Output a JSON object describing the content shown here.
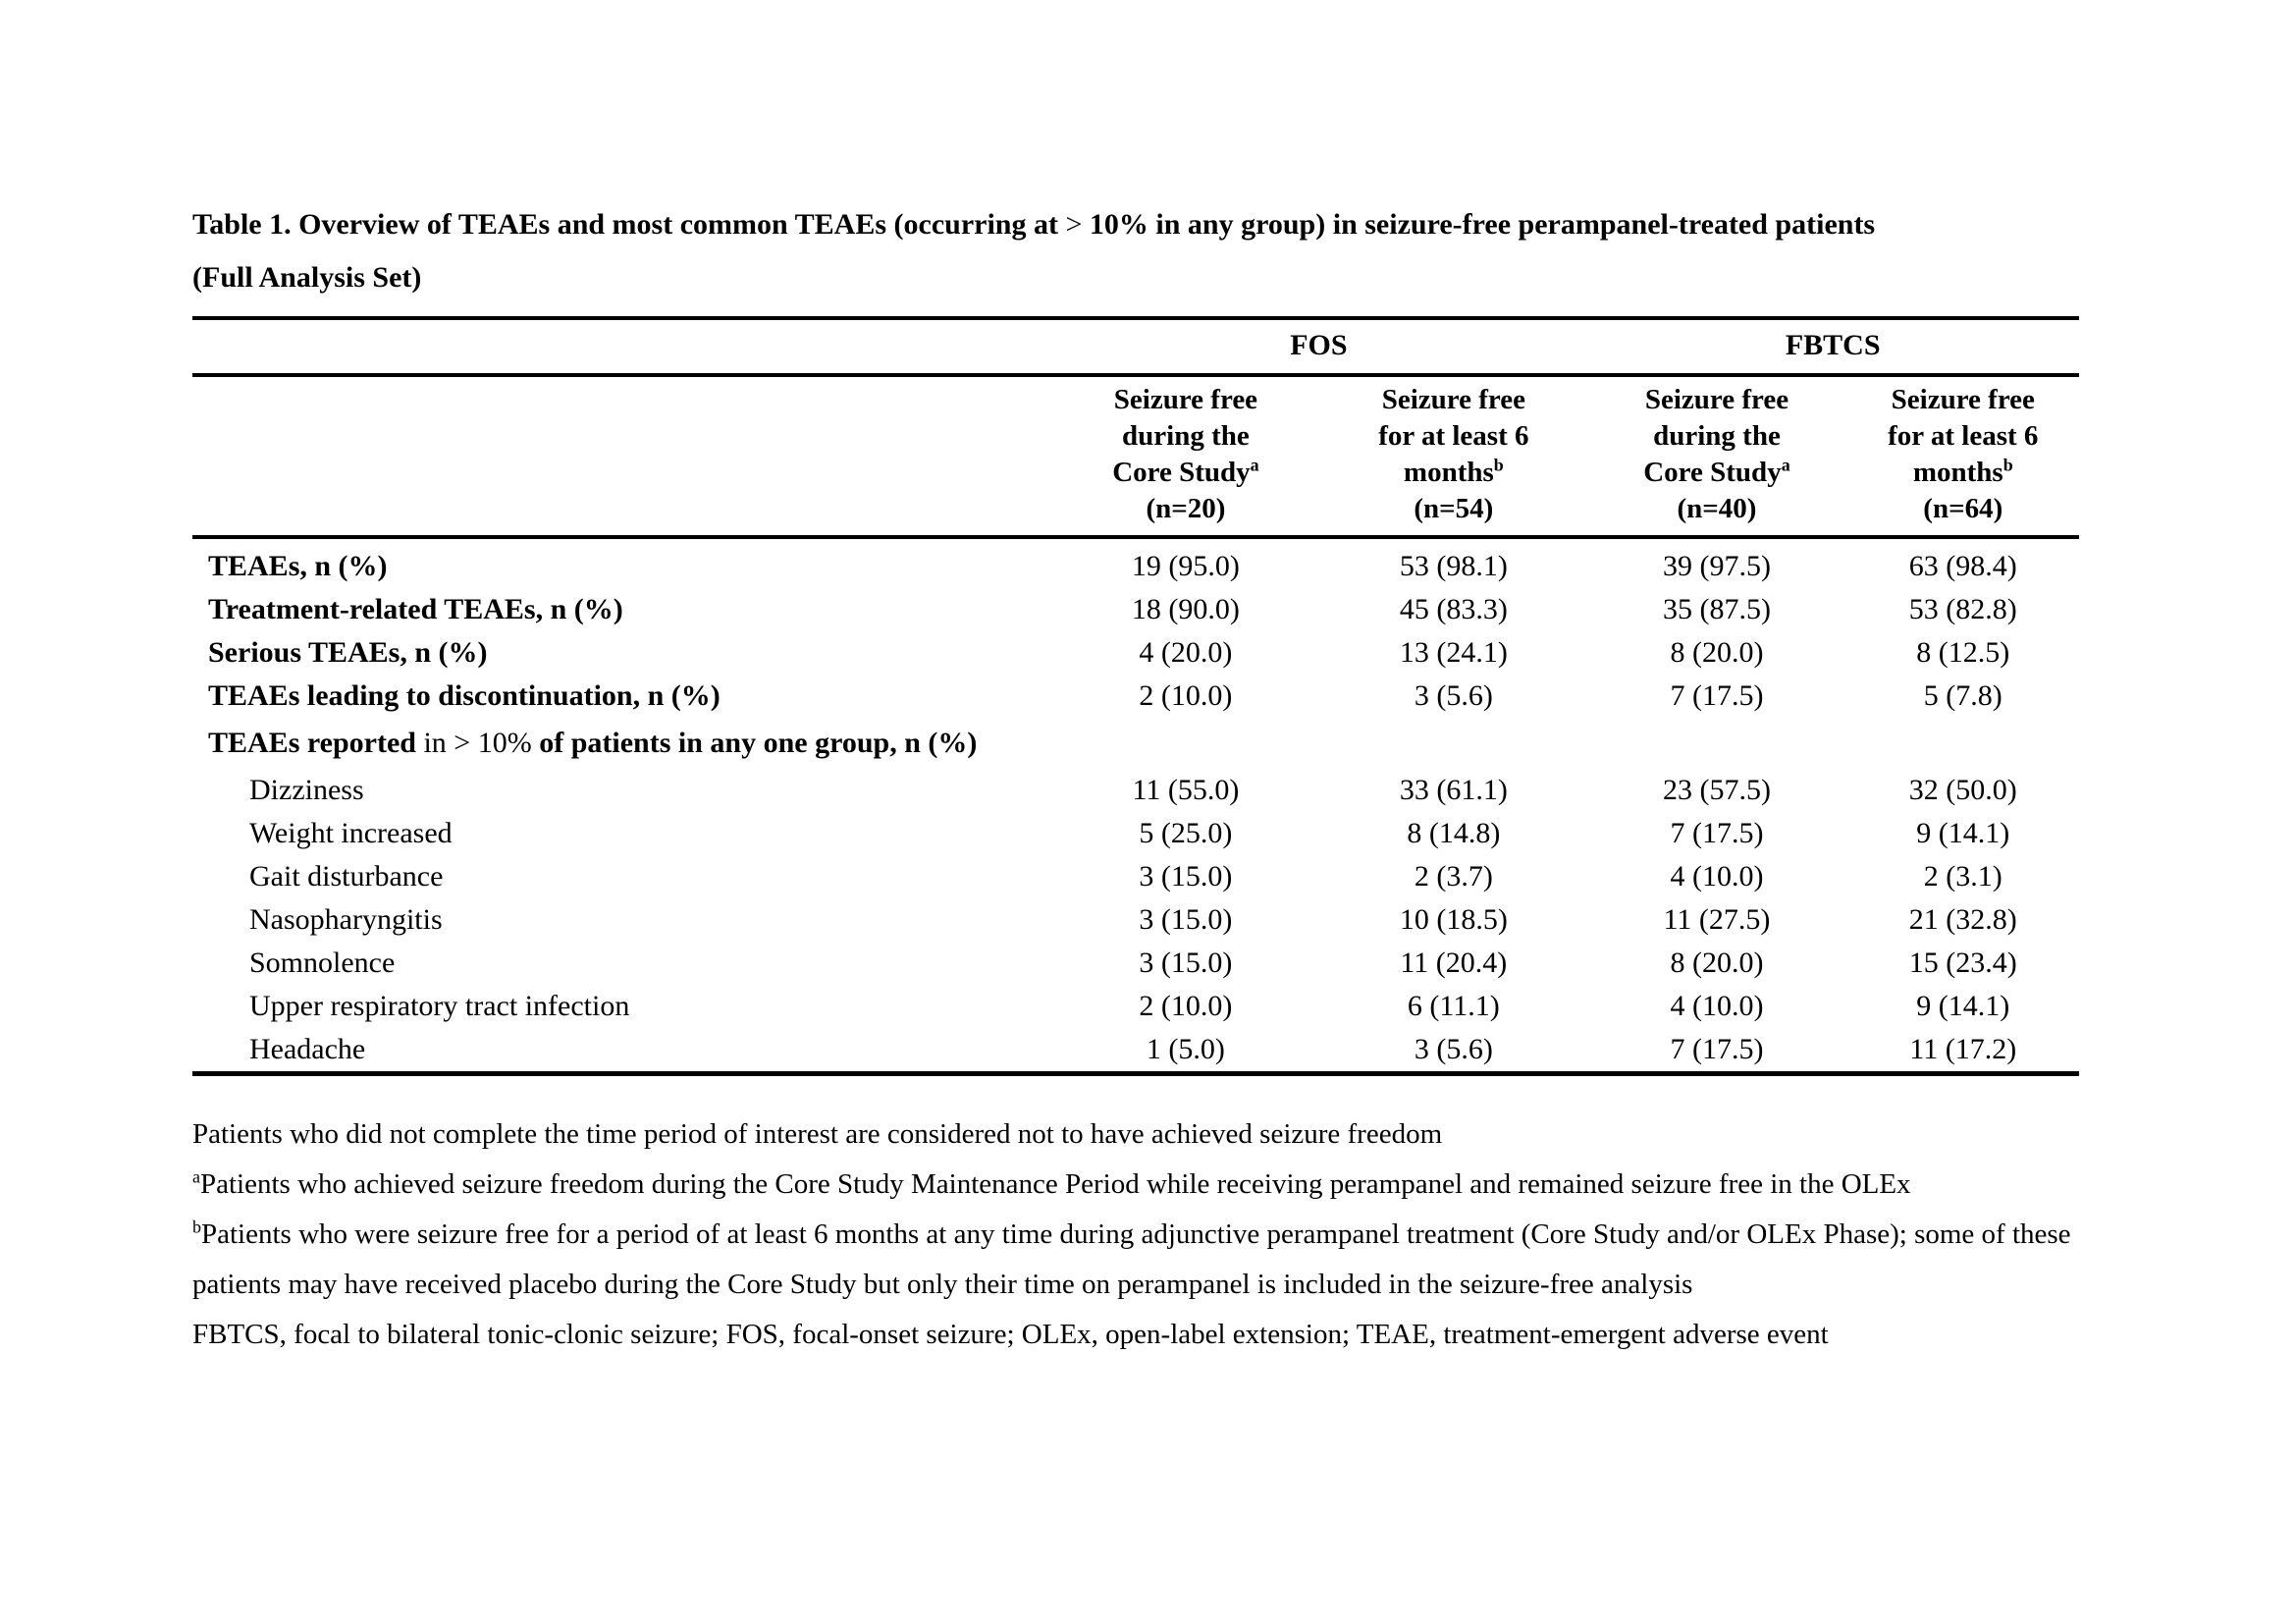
{
  "page": {
    "background": "#ffffff",
    "text_color": "#000000"
  },
  "title": {
    "bold_prefix": "Table 1. Overview of TEAEs and most common TEAEs (occurring at ",
    "regular_symbol": ">",
    "bold_suffix": " 10% in any group) in seizure-free perampanel-treated patients",
    "line2": "(Full Analysis Set)"
  },
  "table": {
    "groups": [
      "FOS",
      "FBTCS"
    ],
    "columns": [
      {
        "lines": [
          "Seizure free",
          "during the",
          "Core Study"
        ],
        "sup": "a",
        "n_label": "(n=20)"
      },
      {
        "lines": [
          "Seizure free",
          "for at least 6",
          "months"
        ],
        "sup": "b",
        "n_label": "(n=54)"
      },
      {
        "lines": [
          "Seizure free",
          "during the",
          "Core Study"
        ],
        "sup": "a",
        "n_label": "(n=40)"
      },
      {
        "lines": [
          "Seizure free",
          "for at least 6",
          "months"
        ],
        "sup": "b",
        "n_label": "(n=64)"
      }
    ],
    "rows": [
      {
        "style": "bold",
        "label": "TEAEs, n (%)",
        "values": [
          "19 (95.0)",
          "53 (98.1)",
          "39 (97.5)",
          "63 (98.4)"
        ]
      },
      {
        "style": "bold",
        "label": "Treatment-related TEAEs, n (%)",
        "values": [
          "18 (90.0)",
          "45 (83.3)",
          "35 (87.5)",
          "53 (82.8)"
        ]
      },
      {
        "style": "bold",
        "label": "Serious TEAEs, n (%)",
        "values": [
          "4 (20.0)",
          "13 (24.1)",
          "8 (20.0)",
          "8 (12.5)"
        ]
      },
      {
        "style": "bold",
        "label": "TEAEs leading to discontinuation, n (%)",
        "values": [
          "2 (10.0)",
          "3 (5.6)",
          "7 (17.5)",
          "5 (7.8)"
        ]
      },
      {
        "style": "section",
        "label_parts": {
          "bold1": "TEAEs reported ",
          "regular": "in > 10% ",
          "bold2": "of patients in any one group, n (%)"
        },
        "values": [
          "",
          "",
          "",
          ""
        ]
      },
      {
        "style": "sub",
        "label": "Dizziness",
        "values": [
          "11 (55.0)",
          "33 (61.1)",
          "23 (57.5)",
          "32 (50.0)"
        ]
      },
      {
        "style": "sub",
        "label": "Weight increased",
        "values": [
          "5 (25.0)",
          "8 (14.8)",
          "7 (17.5)",
          "9 (14.1)"
        ]
      },
      {
        "style": "sub",
        "label": "Gait disturbance",
        "values": [
          "3 (15.0)",
          "2 (3.7)",
          "4 (10.0)",
          "2 (3.1)"
        ]
      },
      {
        "style": "sub",
        "label": "Nasopharyngitis",
        "values": [
          "3 (15.0)",
          "10 (18.5)",
          "11 (27.5)",
          "21 (32.8)"
        ]
      },
      {
        "style": "sub",
        "label": "Somnolence",
        "values": [
          "3 (15.0)",
          "11 (20.4)",
          "8 (20.0)",
          "15 (23.4)"
        ]
      },
      {
        "style": "sub",
        "label": "Upper respiratory tract infection",
        "values": [
          "2 (10.0)",
          "6 (11.1)",
          "4 (10.0)",
          "9 (14.1)"
        ]
      },
      {
        "style": "sub",
        "label": "Headache",
        "values": [
          "1 (5.0)",
          "3 (5.6)",
          "7 (17.5)",
          "11 (17.2)"
        ]
      }
    ]
  },
  "footnotes": [
    {
      "sup": "",
      "text": "Patients who did not complete the time period of interest are considered not to have achieved seizure freedom"
    },
    {
      "sup": "a",
      "text": "Patients who achieved seizure freedom during the Core Study Maintenance Period while receiving perampanel and remained seizure free in the OLEx"
    },
    {
      "sup": "b",
      "text": "Patients who were seizure free for a period of at least 6 months at any time during adjunctive perampanel treatment (Core Study and/or OLEx Phase); some of these patients may have received placebo during the Core Study but only their time on perampanel is included in the seizure-free analysis"
    },
    {
      "sup": "",
      "text": "FBTCS, focal to bilateral tonic-clonic seizure; FOS, focal-onset seizure; OLEx, open-label extension; TEAE, treatment-emergent adverse event"
    }
  ]
}
